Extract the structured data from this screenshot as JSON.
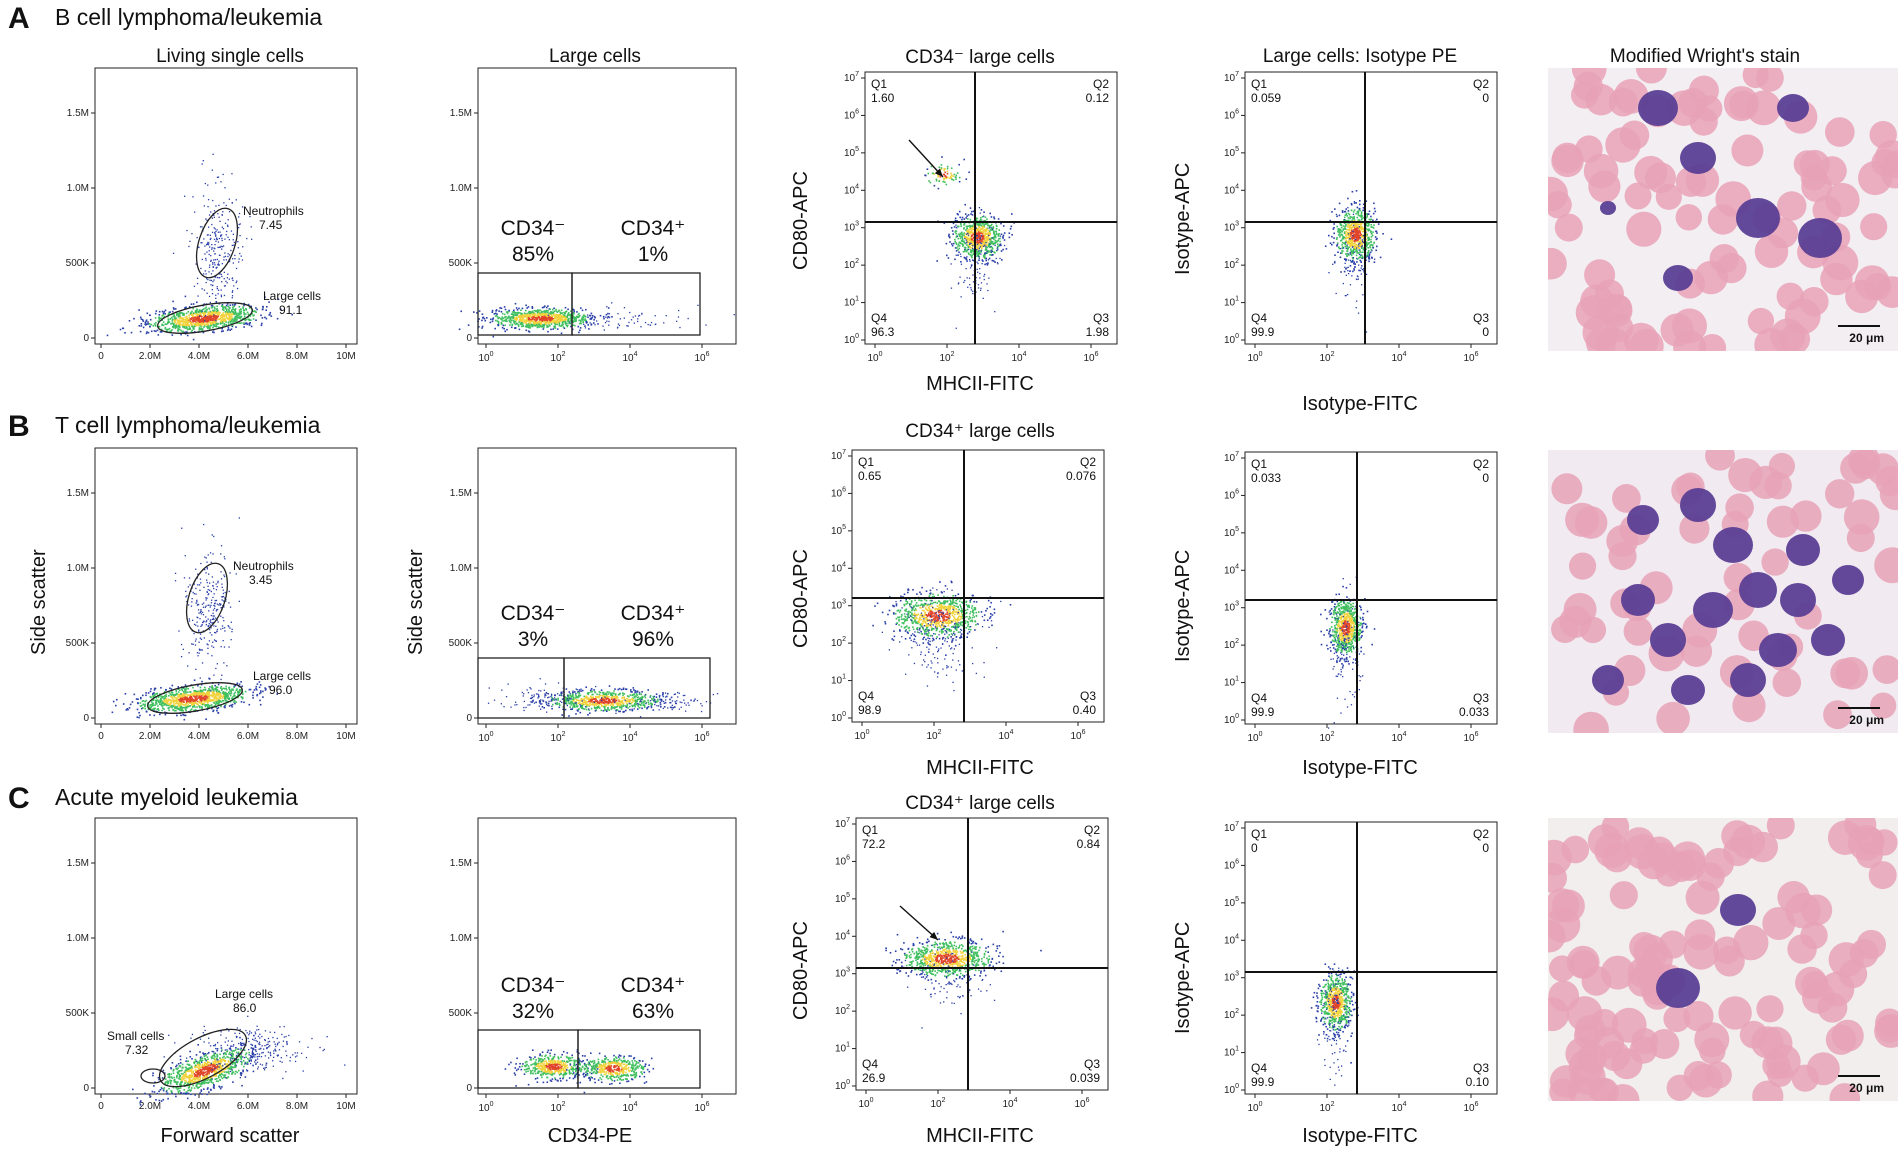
{
  "figure": {
    "rows": [
      {
        "letter": "A",
        "title": "B cell lymphoma/leukemia",
        "scatter": {
          "title": "Living single cells",
          "gates": [
            {
              "name": "Neutrophils",
              "value": "7.45"
            },
            {
              "name": "Large cells",
              "value": "91.1"
            }
          ]
        },
        "cd34": {
          "title": "Large cells",
          "neg_label": "CD34⁻",
          "neg_value": "85%",
          "pos_label": "CD34⁺",
          "pos_value": "1%"
        },
        "quad": {
          "title": "CD34⁻ large cells",
          "q1": "1.60",
          "q2": "0.12",
          "q3": "1.98",
          "q4": "96.3"
        },
        "iso": {
          "title": "Large cells: Isotype PE",
          "q1": "0.059",
          "q2": "0",
          "q3": "0",
          "q4": "99.9"
        },
        "micro": {
          "title": "Modified Wright's stain",
          "scale": "20 μm"
        }
      },
      {
        "letter": "B",
        "title": "T cell lymphoma/leukemia",
        "scatter": {
          "title": "",
          "gates": [
            {
              "name": "Neutrophils",
              "value": "3.45"
            },
            {
              "name": "Large cells",
              "value": "96.0"
            }
          ]
        },
        "cd34": {
          "title": "",
          "neg_label": "CD34⁻",
          "neg_value": "3%",
          "pos_label": "CD34⁺",
          "pos_value": "96%"
        },
        "quad": {
          "title": "CD34⁺ large cells",
          "q1": "0.65",
          "q2": "0.076",
          "q3": "0.40",
          "q4": "98.9"
        },
        "iso": {
          "title": "",
          "q1": "0.033",
          "q2": "0",
          "q3": "0.033",
          "q4": "99.9"
        },
        "micro": {
          "title": "",
          "scale": "20 μm"
        }
      },
      {
        "letter": "C",
        "title": "Acute myeloid leukemia",
        "scatter": {
          "title": "",
          "gates": [
            {
              "name": "Small cells",
              "value": "7.32"
            },
            {
              "name": "Large cells",
              "value": "86.0"
            }
          ]
        },
        "cd34": {
          "title": "",
          "neg_label": "CD34⁻",
          "neg_value": "32%",
          "pos_label": "CD34⁺",
          "pos_value": "63%"
        },
        "quad": {
          "title": "CD34⁺ large cells",
          "q1": "72.2",
          "q2": "0.84",
          "q3": "0.039",
          "q4": "26.9"
        },
        "iso": {
          "title": "",
          "q1": "0",
          "q2": "0",
          "q3": "0.10",
          "q4": "99.9"
        },
        "micro": {
          "title": "",
          "scale": "20 μm"
        }
      }
    ],
    "axes": {
      "side_scatter": "Side scatter",
      "forward_scatter": "Forward scatter",
      "cd34_pe": "CD34-PE",
      "cd80_apc": "CD80-APC",
      "mhcii_fitc": "MHCII-FITC",
      "isotype_apc": "Isotype-APC",
      "isotype_fitc": "Isotype-FITC"
    },
    "ticks": {
      "fsc_x": [
        "0",
        "2.0M",
        "4.0M",
        "6.0M",
        "8.0M",
        "10M"
      ],
      "ssc_y": [
        "0",
        "500K",
        "1.0M",
        "1.5M"
      ],
      "log_base": "10",
      "log_x_exp": [
        "0",
        "2",
        "4",
        "6"
      ],
      "log_y_exp": [
        "0",
        "1",
        "2",
        "3",
        "4",
        "5",
        "6",
        "7"
      ]
    },
    "quadrant_names": [
      "Q1",
      "Q2",
      "Q3",
      "Q4"
    ],
    "colors": {
      "dense": "#e0452a",
      "mid": "#f2d23c",
      "low": "#3fbf5e",
      "sparse": "#2a3fa8",
      "rbc": "#e7a2b7",
      "nucleus": "#5b3f95"
    }
  }
}
